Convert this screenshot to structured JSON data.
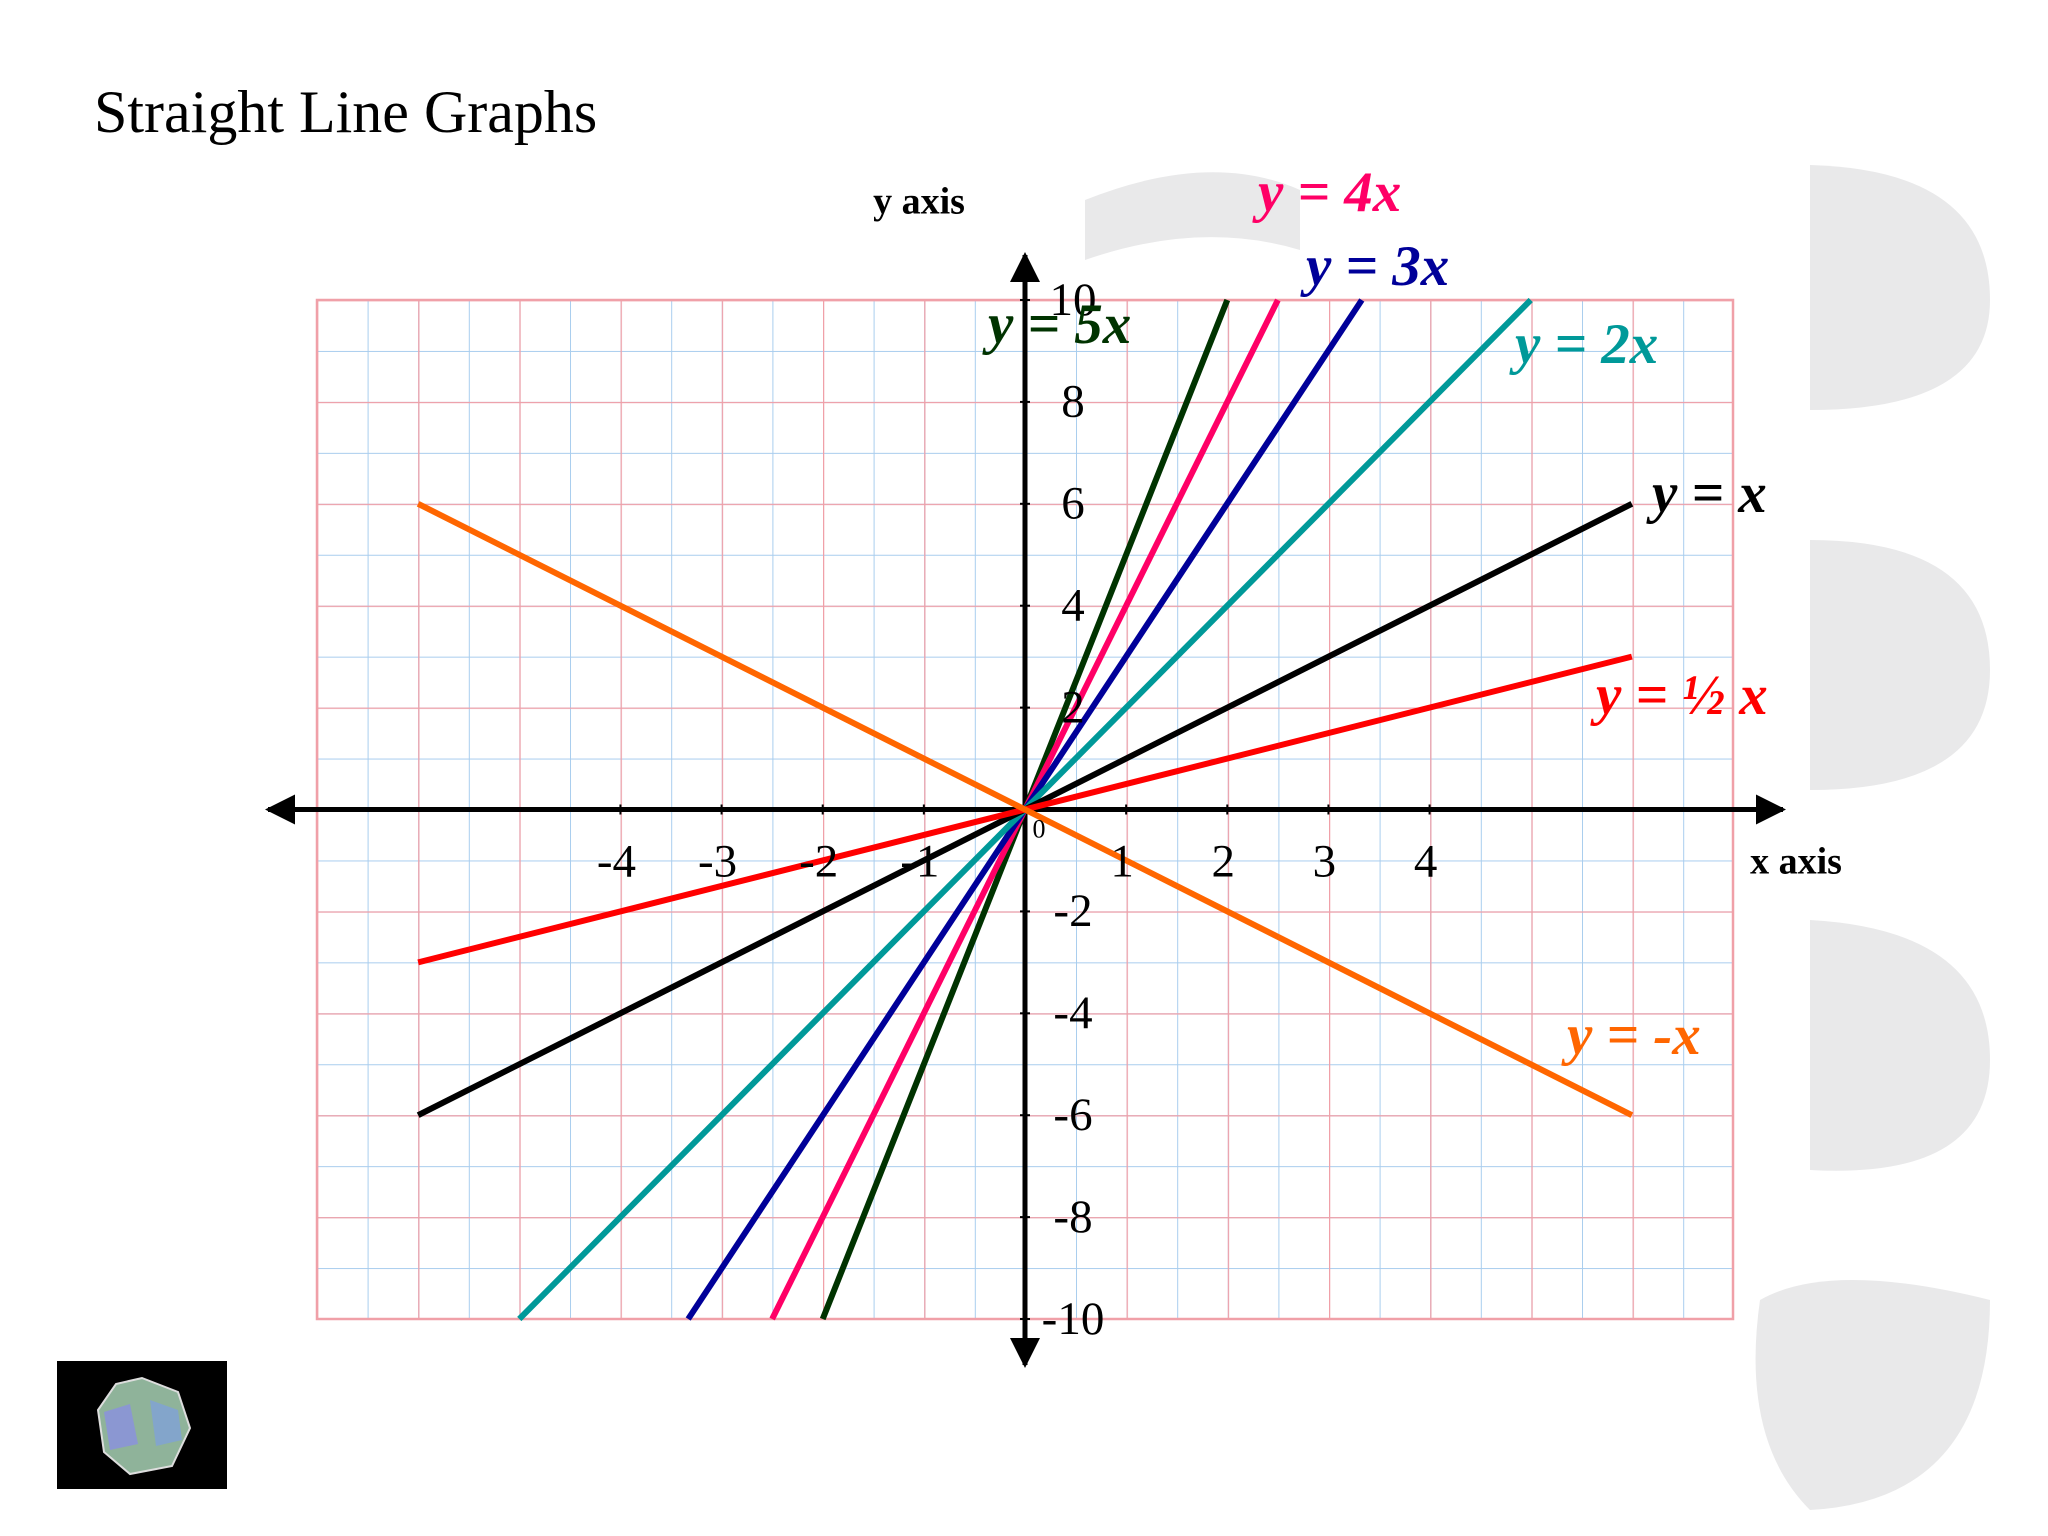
{
  "chart_data": {
    "type": "line",
    "title": "Straight Line Graphs",
    "x_label": "x axis",
    "y_label": "y axis",
    "xlim": [
      -7,
      7
    ],
    "ylim": [
      -10,
      10
    ],
    "xticks": [
      -4,
      -3,
      -2,
      -1,
      0,
      1,
      2,
      3,
      4
    ],
    "yticks": [
      -10,
      -8,
      -6,
      -4,
      -2,
      2,
      4,
      6,
      8,
      10
    ],
    "grid": true,
    "series": [
      {
        "name": "y = 5x",
        "color": "#003300",
        "x": [
          -2,
          2
        ],
        "values": [
          -10,
          10
        ]
      },
      {
        "name": "y = 4x",
        "color": "#ff0066",
        "x": [
          -2.5,
          2.5
        ],
        "values": [
          -10,
          10
        ]
      },
      {
        "name": "y = 3x",
        "color": "#000099",
        "x": [
          -3.33,
          3.33
        ],
        "values": [
          -10,
          10
        ]
      },
      {
        "name": "y = 2x",
        "color": "#009999",
        "x": [
          -5,
          5
        ],
        "values": [
          -10,
          10
        ]
      },
      {
        "name": "y = x",
        "color": "#000000",
        "x": [
          -6,
          6
        ],
        "values": [
          -6,
          6
        ]
      },
      {
        "name": "y = ½ x",
        "color": "#ff0000",
        "x": [
          -6,
          6
        ],
        "values": [
          -3,
          3
        ]
      },
      {
        "name": "y = -x",
        "color": "#ff6600",
        "x": [
          -6,
          6
        ],
        "values": [
          6,
          -6
        ]
      }
    ]
  }
}
